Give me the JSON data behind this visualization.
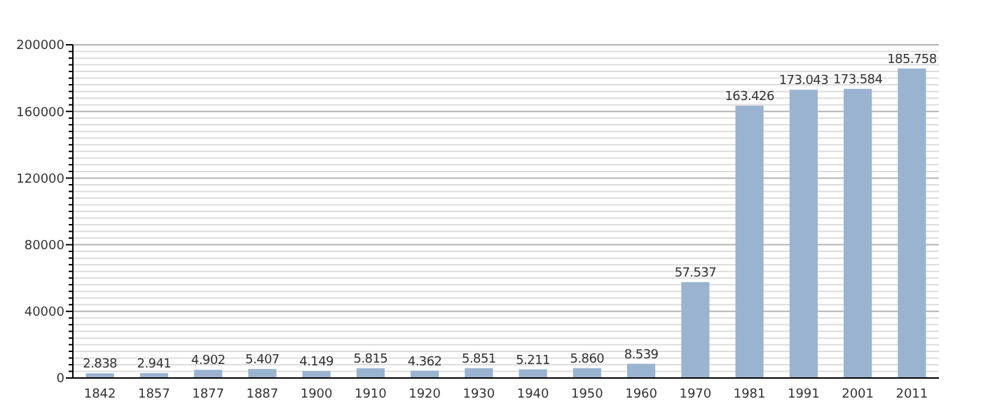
{
  "chart_data": {
    "type": "bar",
    "categories": [
      "1842",
      "1857",
      "1877",
      "1887",
      "1900",
      "1910",
      "1920",
      "1930",
      "1940",
      "1950",
      "1960",
      "1970",
      "1981",
      "1991",
      "2001",
      "2011"
    ],
    "values": [
      2838,
      2941,
      4902,
      5407,
      4149,
      5815,
      4362,
      5851,
      5211,
      5860,
      8539,
      57537,
      163426,
      173043,
      173584,
      185758
    ],
    "value_labels": [
      "2.838",
      "2.941",
      "4.902",
      "5.407",
      "4.149",
      "5.815",
      "4.362",
      "5.851",
      "5.211",
      "5.860",
      "8.539",
      "57.537",
      "163.426",
      "173.043",
      "173.584",
      "185.758"
    ],
    "color": "#9ab3d0",
    "ylim": [
      0,
      200000
    ],
    "yticks": [
      0,
      {
        "value": 4000,
        "label": null
      },
      {
        "value": 8000,
        "label": null
      },
      {
        "value": 12000,
        "label": null
      },
      {
        "value": 16000,
        "label": null
      },
      {
        "value": 20000,
        "label": null
      },
      {
        "value": 24000,
        "label": null
      },
      {
        "value": 28000,
        "label": null
      },
      {
        "value": 32000,
        "label": null
      },
      {
        "value": 36000,
        "label": null
      },
      40000,
      {
        "value": 44000,
        "label": null
      },
      {
        "value": 48000,
        "label": null
      },
      {
        "value": 52000,
        "label": null
      },
      {
        "value": 56000,
        "label": null
      },
      {
        "value": 60000,
        "label": null
      },
      {
        "value": 64000,
        "label": null
      },
      {
        "value": 68000,
        "label": null
      },
      {
        "value": 72000,
        "label": null
      },
      {
        "value": 76000,
        "label": null
      },
      80000,
      {
        "value": 84000,
        "label": null
      },
      {
        "value": 88000,
        "label": null
      },
      {
        "value": 92000,
        "label": null
      },
      {
        "value": 96000,
        "label": null
      },
      {
        "value": 100000,
        "label": null
      },
      {
        "value": 104000,
        "label": null
      },
      {
        "value": 108000,
        "label": null
      },
      {
        "value": 112000,
        "label": null
      },
      {
        "value": 116000,
        "label": null
      },
      120000,
      {
        "value": 124000,
        "label": null
      },
      {
        "value": 128000,
        "label": null
      },
      {
        "value": 132000,
        "label": null
      },
      {
        "value": 136000,
        "label": null
      },
      {
        "value": 140000,
        "label": null
      },
      {
        "value": 144000,
        "label": null
      },
      {
        "value": 148000,
        "label": null
      },
      {
        "value": 152000,
        "label": null
      },
      {
        "value": 156000,
        "label": null
      },
      160000,
      {
        "value": 164000,
        "label": null
      },
      {
        "value": 168000,
        "label": null
      },
      {
        "value": 172000,
        "label": null
      },
      {
        "value": 176000,
        "label": null
      },
      {
        "value": 180000,
        "label": null
      },
      {
        "value": 184000,
        "label": null
      },
      {
        "value": 188000,
        "label": null
      },
      {
        "value": 192000,
        "label": null
      },
      {
        "value": 196000,
        "label": null
      },
      200000
    ],
    "grid": true
  }
}
